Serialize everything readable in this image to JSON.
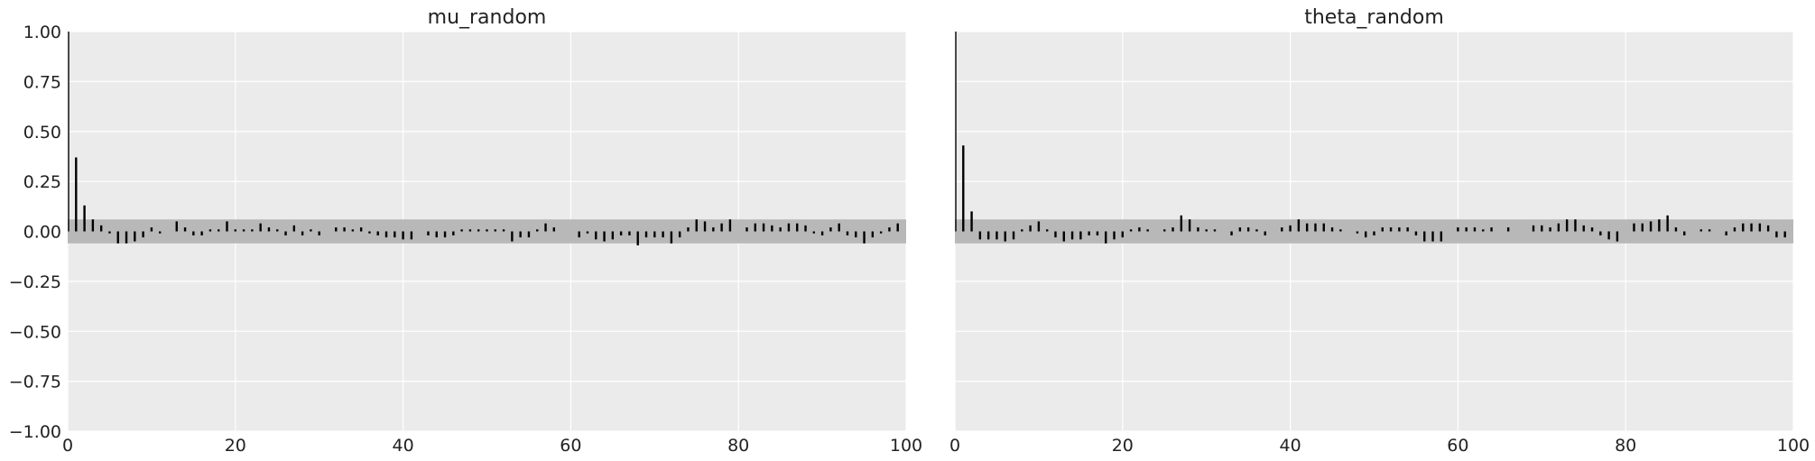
{
  "chart_data": [
    {
      "type": "bar",
      "title": "mu_random",
      "xlabel": "",
      "ylabel": "",
      "xlim": [
        0,
        100
      ],
      "ylim": [
        -1,
        1
      ],
      "xticks": [
        0,
        20,
        40,
        60,
        80,
        100
      ],
      "xtick_labels": [
        "0",
        "20",
        "40",
        "60",
        "80",
        "100"
      ],
      "yticks": [
        1.0,
        0.75,
        0.5,
        0.25,
        0.0,
        -0.25,
        -0.5,
        -0.75,
        -1.0
      ],
      "ytick_labels": [
        "1.00",
        "0.75",
        "0.50",
        "0.25",
        "0.00",
        "−0.25",
        "−0.50",
        "−0.75",
        "−1.00"
      ],
      "band": 0.06,
      "grid": true,
      "lags": [
        0,
        1,
        2,
        3,
        4,
        5,
        6,
        7,
        8,
        9,
        10,
        11,
        12,
        13,
        14,
        15,
        16,
        17,
        18,
        19,
        20,
        21,
        22,
        23,
        24,
        25,
        26,
        27,
        28,
        29,
        30,
        31,
        32,
        33,
        34,
        35,
        36,
        37,
        38,
        39,
        40,
        41,
        42,
        43,
        44,
        45,
        46,
        47,
        48,
        49,
        50,
        51,
        52,
        53,
        54,
        55,
        56,
        57,
        58,
        59,
        60,
        61,
        62,
        63,
        64,
        65,
        66,
        67,
        68,
        69,
        70,
        71,
        72,
        73,
        74,
        75,
        76,
        77,
        78,
        79,
        80,
        81,
        82,
        83,
        84,
        85,
        86,
        87,
        88,
        89,
        90,
        91,
        92,
        93,
        94,
        95,
        96,
        97,
        98,
        99
      ],
      "values": [
        1.0,
        0.37,
        0.13,
        0.06,
        0.03,
        -0.01,
        -0.06,
        -0.06,
        -0.05,
        -0.03,
        0.02,
        -0.01,
        0.0,
        0.05,
        0.02,
        -0.02,
        -0.02,
        0.01,
        0.01,
        0.05,
        0.01,
        0.01,
        0.01,
        0.04,
        0.02,
        0.01,
        -0.02,
        0.03,
        -0.02,
        0.01,
        -0.02,
        0.0,
        0.02,
        0.02,
        0.01,
        0.02,
        -0.01,
        -0.02,
        -0.03,
        -0.03,
        -0.04,
        -0.04,
        0.0,
        -0.02,
        -0.03,
        -0.03,
        -0.02,
        0.01,
        0.01,
        0.01,
        0.01,
        0.01,
        0.01,
        -0.05,
        -0.03,
        -0.03,
        0.01,
        0.04,
        0.02,
        0.0,
        0.0,
        -0.03,
        -0.01,
        -0.04,
        -0.05,
        -0.04,
        -0.02,
        -0.02,
        -0.07,
        -0.03,
        -0.03,
        -0.03,
        -0.06,
        -0.03,
        0.02,
        0.06,
        0.05,
        0.02,
        0.04,
        0.06,
        0.0,
        0.02,
        0.04,
        0.04,
        0.03,
        0.02,
        0.04,
        0.04,
        0.03,
        -0.01,
        -0.02,
        0.02,
        0.04,
        -0.02,
        -0.03,
        -0.06,
        -0.03,
        -0.01,
        0.02,
        0.04
      ]
    },
    {
      "type": "bar",
      "title": "theta_random",
      "xlabel": "",
      "ylabel": "",
      "xlim": [
        0,
        100
      ],
      "ylim": [
        -1,
        1
      ],
      "xticks": [
        0,
        20,
        40,
        60,
        80,
        100
      ],
      "xtick_labels": [
        "0",
        "20",
        "40",
        "60",
        "80",
        "100"
      ],
      "band": 0.06,
      "grid": true,
      "lags": [
        0,
        1,
        2,
        3,
        4,
        5,
        6,
        7,
        8,
        9,
        10,
        11,
        12,
        13,
        14,
        15,
        16,
        17,
        18,
        19,
        20,
        21,
        22,
        23,
        24,
        25,
        26,
        27,
        28,
        29,
        30,
        31,
        32,
        33,
        34,
        35,
        36,
        37,
        38,
        39,
        40,
        41,
        42,
        43,
        44,
        45,
        46,
        47,
        48,
        49,
        50,
        51,
        52,
        53,
        54,
        55,
        56,
        57,
        58,
        59,
        60,
        61,
        62,
        63,
        64,
        65,
        66,
        67,
        68,
        69,
        70,
        71,
        72,
        73,
        74,
        75,
        76,
        77,
        78,
        79,
        80,
        81,
        82,
        83,
        84,
        85,
        86,
        87,
        88,
        89,
        90,
        91,
        92,
        93,
        94,
        95,
        96,
        97,
        98,
        99
      ],
      "values": [
        1.0,
        0.43,
        0.1,
        -0.04,
        -0.04,
        -0.04,
        -0.05,
        -0.04,
        0.01,
        0.03,
        0.05,
        0.01,
        -0.03,
        -0.05,
        -0.04,
        -0.04,
        -0.02,
        -0.02,
        -0.06,
        -0.04,
        -0.03,
        0.01,
        0.02,
        0.01,
        0.0,
        0.01,
        0.02,
        0.08,
        0.06,
        0.02,
        0.01,
        0.01,
        0.0,
        -0.02,
        0.02,
        0.02,
        0.01,
        -0.02,
        0.0,
        0.02,
        0.03,
        0.06,
        0.04,
        0.04,
        0.04,
        0.02,
        0.01,
        0.0,
        -0.01,
        -0.03,
        -0.02,
        0.02,
        0.02,
        0.02,
        0.02,
        -0.02,
        -0.05,
        -0.05,
        -0.05,
        0.0,
        0.02,
        0.02,
        0.02,
        0.01,
        0.02,
        0.0,
        0.02,
        0.0,
        0.0,
        0.03,
        0.03,
        0.02,
        0.04,
        0.06,
        0.06,
        0.03,
        0.02,
        -0.02,
        -0.04,
        -0.05,
        0.0,
        0.04,
        0.04,
        0.05,
        0.06,
        0.08,
        0.02,
        -0.02,
        0.0,
        0.01,
        0.01,
        0.0,
        -0.02,
        0.02,
        0.04,
        0.04,
        0.04,
        0.03,
        -0.03,
        -0.03
      ]
    }
  ]
}
